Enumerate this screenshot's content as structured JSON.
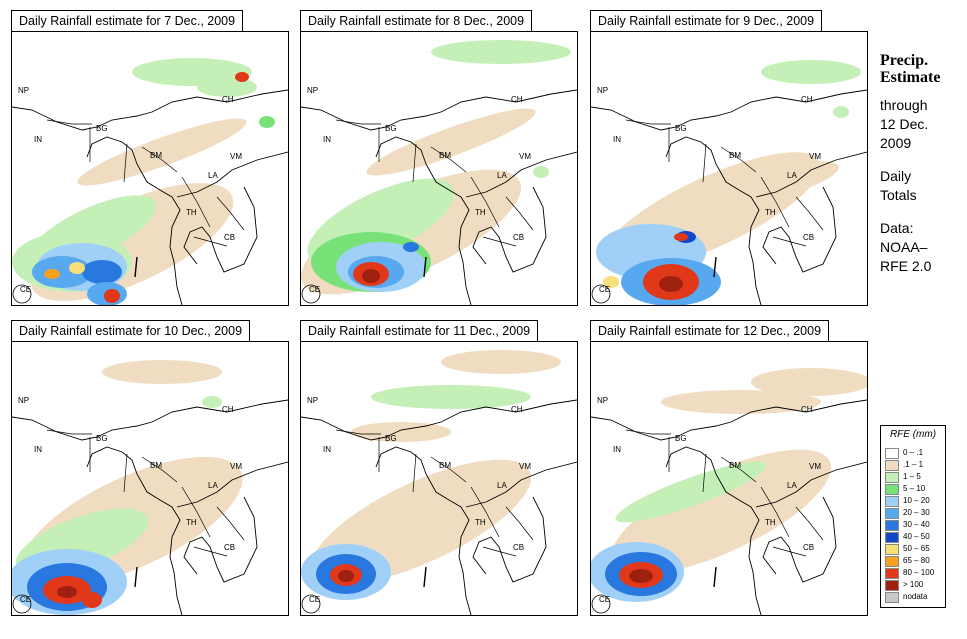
{
  "panels": [
    {
      "title": "Daily Rainfall estimate for  7 Dec., 2009"
    },
    {
      "title": "Daily Rainfall estimate for  8 Dec., 2009"
    },
    {
      "title": "Daily Rainfall estimate for  9 Dec., 2009"
    },
    {
      "title": "Daily Rainfall estimate for  10 Dec., 2009"
    },
    {
      "title": "Daily Rainfall estimate for  11 Dec., 2009"
    },
    {
      "title": "Daily Rainfall estimate for  12 Dec., 2009"
    }
  ],
  "country_labels": {
    "np": "NP",
    "ch": "CH",
    "in": "IN",
    "bg": "BG",
    "bm": "BM",
    "vm": "VM",
    "la": "LA",
    "th": "TH",
    "cb": "CB",
    "ce": "CE"
  },
  "side": {
    "heading1": "Precip.",
    "heading2": "Estimate",
    "line1": "through",
    "line2": "12 Dec.",
    "line3": "2009",
    "line4": "Daily",
    "line5": "Totals",
    "line6": "Data:",
    "line7": "NOAA–",
    "line8": "RFE 2.0"
  },
  "legend": {
    "title": "RFE (mm)",
    "items": [
      {
        "label": "0 – .1",
        "color": "#ffffff"
      },
      {
        "label": ".1 – 1",
        "color": "#f0dcc0"
      },
      {
        "label": "1 – 5",
        "color": "#c4f0b8"
      },
      {
        "label": "5 – 10",
        "color": "#78e278"
      },
      {
        "label": "10 – 20",
        "color": "#a0d0f8"
      },
      {
        "label": "20 – 30",
        "color": "#58a8f0"
      },
      {
        "label": "30 – 40",
        "color": "#2878e0"
      },
      {
        "label": "40 – 50",
        "color": "#1048c8"
      },
      {
        "label": "50 – 65",
        "color": "#f8e078"
      },
      {
        "label": "65 – 80",
        "color": "#f8a020"
      },
      {
        "label": "80 – 100",
        "color": "#e03818"
      },
      {
        "label": "> 100",
        "color": "#a02010"
      },
      {
        "label": "nodata",
        "color": "#c8c8c8"
      }
    ]
  }
}
